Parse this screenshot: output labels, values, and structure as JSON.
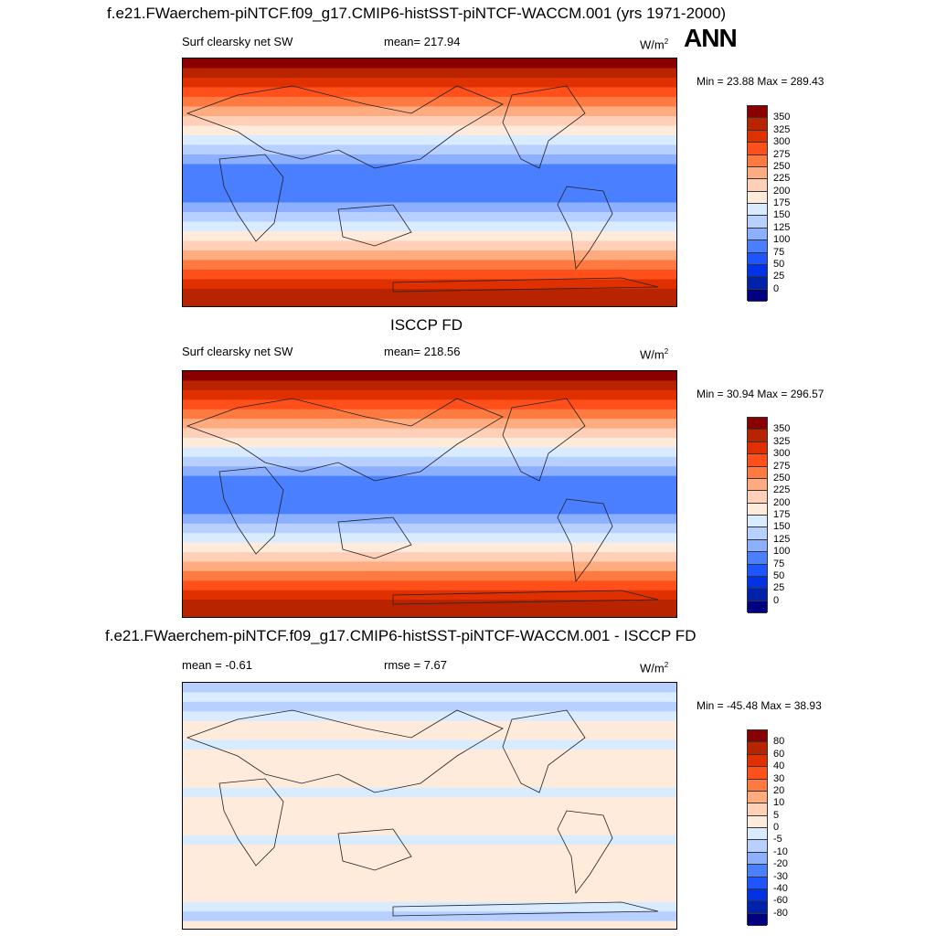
{
  "panels": [
    {
      "title": "f.e21.FWaerchem-piNTCF.f09_g17.CMIP6-histSST-piNTCF-WACCM.001 (yrs 1971-2000)",
      "season": "ANN",
      "left_label": "Surf clearsky net SW",
      "center_label": "mean= 217.94",
      "units": "W/m",
      "units_sup": "2",
      "minmax": "Min =  23.88 Max = 289.43",
      "colorbar": {
        "labels": [
          "350",
          "325",
          "300",
          "275",
          "250",
          "225",
          "200",
          "175",
          "150",
          "125",
          "100",
          "75",
          "50",
          "25",
          "0"
        ],
        "colors": [
          "#8a0000",
          "#b82300",
          "#e03000",
          "#ff4f1a",
          "#ff7a40",
          "#ffab80",
          "#ffcfb8",
          "#ffebdb",
          "#d9ebff",
          "#b8d0ff",
          "#8cafff",
          "#4a80ff",
          "#1f55ff",
          "#0033e6",
          "#0022aa",
          "#000080"
        ]
      }
    },
    {
      "title": "ISCCP FD",
      "left_label": "Surf clearsky net SW",
      "center_label": "mean= 218.56",
      "units": "W/m",
      "units_sup": "2",
      "minmax": "Min =  30.94 Max = 296.57",
      "colorbar": {
        "labels": [
          "350",
          "325",
          "300",
          "275",
          "250",
          "225",
          "200",
          "175",
          "150",
          "125",
          "100",
          "75",
          "50",
          "25",
          "0"
        ],
        "colors": [
          "#8a0000",
          "#b82300",
          "#e03000",
          "#ff4f1a",
          "#ff7a40",
          "#ffab80",
          "#ffcfb8",
          "#ffebdb",
          "#d9ebff",
          "#b8d0ff",
          "#8cafff",
          "#4a80ff",
          "#1f55ff",
          "#0033e6",
          "#0022aa",
          "#000080"
        ]
      }
    },
    {
      "title": "f.e21.FWaerchem-piNTCF.f09_g17.CMIP6-histSST-piNTCF-WACCM.001 - ISCCP FD",
      "left_label": "mean =  -0.61",
      "center_label": "rmse =   7.67",
      "units": "W/m",
      "units_sup": "2",
      "minmax": "Min = -45.48 Max =  38.93",
      "colorbar": {
        "labels": [
          "80",
          "60",
          "40",
          "30",
          "20",
          "10",
          "5",
          "0",
          "-5",
          "-10",
          "-20",
          "-30",
          "-40",
          "-60",
          "-80"
        ],
        "colors": [
          "#8a0000",
          "#b82300",
          "#e03000",
          "#ff4f1a",
          "#ff7a40",
          "#ffab80",
          "#ffcfb8",
          "#ffebdb",
          "#d9ebff",
          "#b8d0ff",
          "#8cafff",
          "#4a80ff",
          "#1f55ff",
          "#0033e6",
          "#0022aa",
          "#000080"
        ]
      }
    }
  ]
}
